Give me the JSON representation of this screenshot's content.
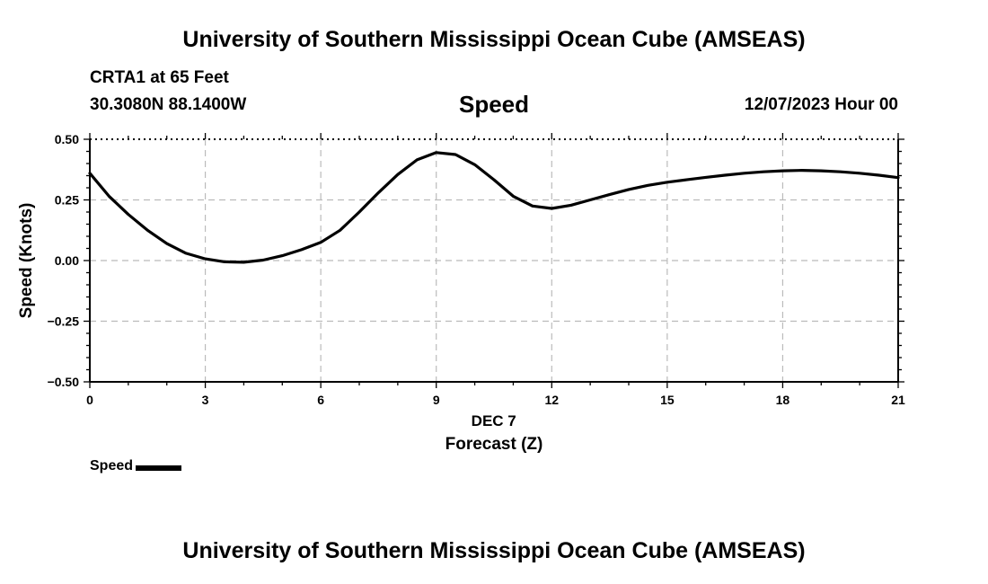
{
  "header": {
    "title": "University of Southern Mississippi Ocean Cube (AMSEAS)",
    "station": "CRTA1 at 65 Feet",
    "coords": "30.3080N  88.1400W",
    "variable": "Speed",
    "datetime": "12/07/2023 Hour 00"
  },
  "footer": {
    "title": "University of Southern Mississippi Ocean Cube (AMSEAS)"
  },
  "legend": {
    "label": "Speed",
    "color": "#000000"
  },
  "chart_data": {
    "type": "line",
    "title": "Speed",
    "xlabel": "Forecast (Z)",
    "xlabel_date": "DEC 7",
    "ylabel": "Speed (Knots)",
    "xlim": [
      0,
      21
    ],
    "ylim": [
      -0.5,
      0.5
    ],
    "xticks": [
      0,
      3,
      6,
      9,
      12,
      15,
      18,
      21
    ],
    "yticks": [
      -0.5,
      -0.25,
      0,
      0.25,
      0.5
    ],
    "ytick_labels": [
      "−0.50",
      "−0.25",
      "0.00",
      "0.25",
      "0.50"
    ],
    "grid": true,
    "series": [
      {
        "name": "Speed",
        "color": "#000000",
        "x": [
          0,
          0.5,
          1,
          1.5,
          2,
          2.5,
          3,
          3.5,
          4,
          4.5,
          5,
          5.5,
          6,
          6.5,
          7,
          7.5,
          8,
          8.5,
          9,
          9.5,
          10,
          10.5,
          11,
          11.5,
          12,
          12.5,
          13,
          13.5,
          14,
          14.5,
          15,
          15.5,
          16,
          16.5,
          17,
          17.5,
          18,
          18.5,
          19,
          19.5,
          20,
          20.5,
          21
        ],
        "values": [
          0.36,
          0.265,
          0.19,
          0.125,
          0.07,
          0.03,
          0.007,
          -0.005,
          -0.007,
          0.002,
          0.02,
          0.045,
          0.075,
          0.125,
          0.2,
          0.28,
          0.355,
          0.415,
          0.445,
          0.437,
          0.395,
          0.333,
          0.265,
          0.225,
          0.215,
          0.228,
          0.25,
          0.272,
          0.293,
          0.31,
          0.323,
          0.333,
          0.343,
          0.352,
          0.36,
          0.366,
          0.37,
          0.372,
          0.37,
          0.366,
          0.36,
          0.352,
          0.342
        ]
      }
    ]
  }
}
